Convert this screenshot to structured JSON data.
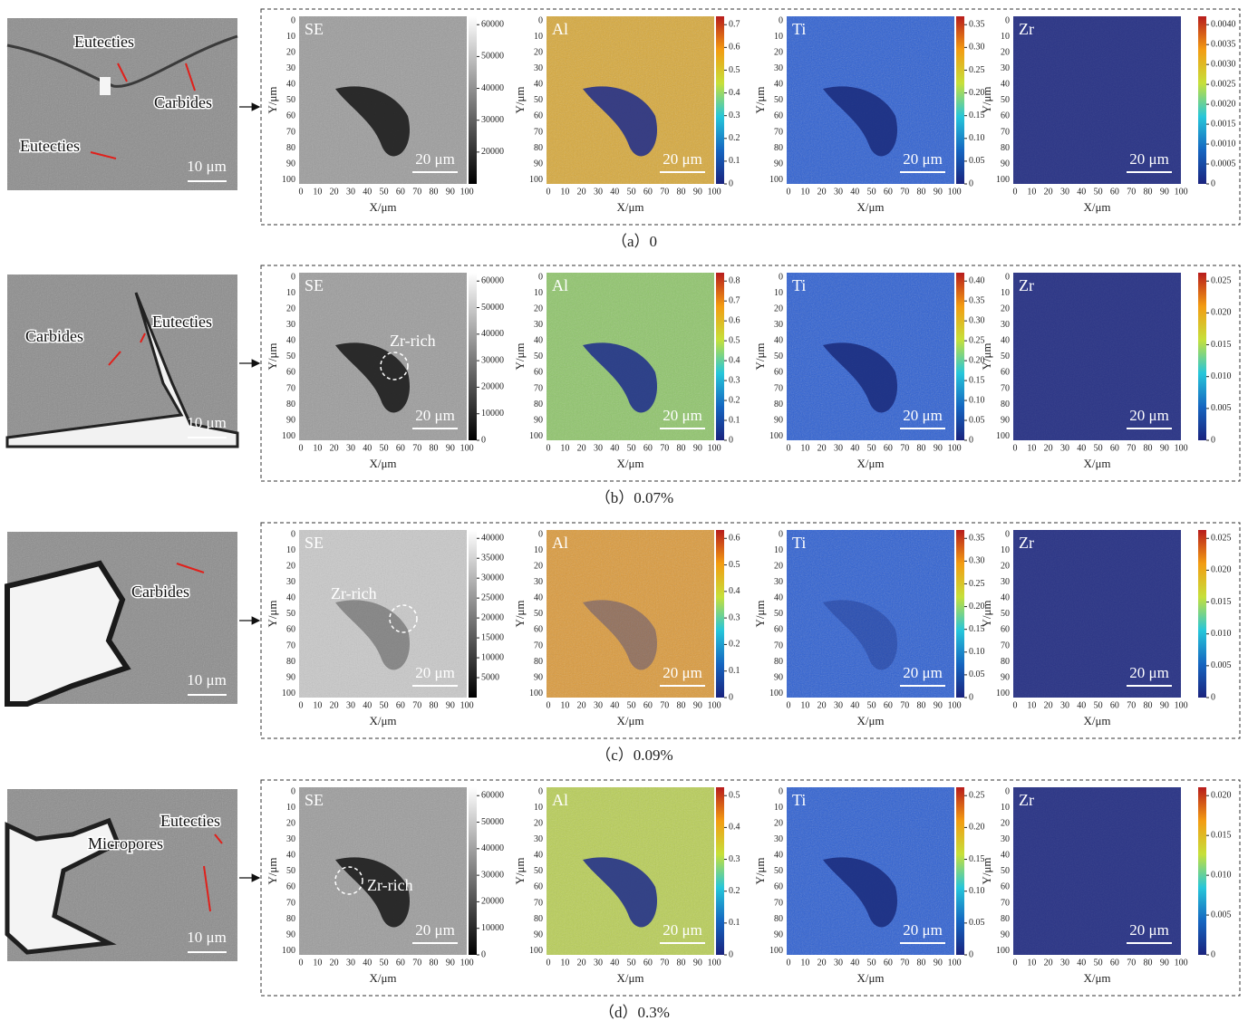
{
  "axis": {
    "ticks": [
      0,
      10,
      20,
      30,
      40,
      50,
      60,
      70,
      80,
      90,
      100
    ],
    "x_label": "X/μm",
    "y_label": "Y/μm",
    "scale_bar": "20 μm"
  },
  "rows": [
    {
      "caption": "（a）0",
      "overview": {
        "labels": [
          "Eutecties",
          "Carbides",
          "Eutecties"
        ],
        "scale_bar": "10 μm"
      },
      "maps": [
        {
          "label": "SE",
          "colorbar": [
            "20000",
            "30000",
            "40000",
            "50000",
            "60000"
          ]
        },
        {
          "label": "Al",
          "colorbar": [
            "0",
            "0.1",
            "0.2",
            "0.3",
            "0.4",
            "0.5",
            "0.6",
            "0.7"
          ]
        },
        {
          "label": "Ti",
          "colorbar": [
            "0",
            "0.05",
            "0.10",
            "0.15",
            "0.20",
            "0.25",
            "0.30",
            "0.35"
          ]
        },
        {
          "label": "Zr",
          "colorbar": [
            "0",
            "0.0005",
            "0.0010",
            "0.0015",
            "0.0020",
            "0.0025",
            "0.0030",
            "0.0035",
            "0.0040"
          ]
        }
      ]
    },
    {
      "caption": "（b）0.07%",
      "overview": {
        "labels": [
          "Carbides",
          "Eutecties"
        ],
        "scale_bar": "10 μm"
      },
      "maps": [
        {
          "label": "SE",
          "colorbar": [
            "0",
            "10000",
            "20000",
            "30000",
            "40000",
            "50000",
            "60000"
          ],
          "annotation": "Zr-rich"
        },
        {
          "label": "Al",
          "colorbar": [
            "0",
            "0.1",
            "0.2",
            "0.3",
            "0.4",
            "0.5",
            "0.6",
            "0.7",
            "0.8"
          ]
        },
        {
          "label": "Ti",
          "colorbar": [
            "0",
            "0.05",
            "0.10",
            "0.15",
            "0.20",
            "0.25",
            "0.30",
            "0.35",
            "0.40"
          ]
        },
        {
          "label": "Zr",
          "colorbar": [
            "0",
            "0.005",
            "0.010",
            "0.015",
            "0.020",
            "0.025"
          ]
        }
      ]
    },
    {
      "caption": "（c）0.09%",
      "overview": {
        "labels": [
          "Carbides"
        ],
        "scale_bar": "10 μm"
      },
      "maps": [
        {
          "label": "SE",
          "colorbar": [
            "5000",
            "10000",
            "15000",
            "20000",
            "25000",
            "30000",
            "35000",
            "40000"
          ],
          "annotation": "Zr-rich"
        },
        {
          "label": "Al",
          "colorbar": [
            "0",
            "0.1",
            "0.2",
            "0.3",
            "0.4",
            "0.5",
            "0.6"
          ]
        },
        {
          "label": "Ti",
          "colorbar": [
            "0",
            "0.05",
            "0.10",
            "0.15",
            "0.20",
            "0.25",
            "0.30",
            "0.35"
          ]
        },
        {
          "label": "Zr",
          "colorbar": [
            "0",
            "0.005",
            "0.010",
            "0.015",
            "0.020",
            "0.025"
          ]
        }
      ]
    },
    {
      "caption": "（d）0.3%",
      "overview": {
        "labels": [
          "Eutecties",
          "Micropores"
        ],
        "scale_bar": "10 μm"
      },
      "maps": [
        {
          "label": "SE",
          "colorbar": [
            "0",
            "10000",
            "20000",
            "30000",
            "40000",
            "50000",
            "60000"
          ],
          "annotation": "Zr-rich"
        },
        {
          "label": "Al",
          "colorbar": [
            "0",
            "0.1",
            "0.2",
            "0.3",
            "0.4",
            "0.5"
          ]
        },
        {
          "label": "Ti",
          "colorbar": [
            "0",
            "0.05",
            "0.10",
            "0.15",
            "0.20",
            "0.25"
          ]
        },
        {
          "label": "Zr",
          "colorbar": [
            "0",
            "0.005",
            "0.010",
            "0.015",
            "0.020"
          ]
        }
      ]
    }
  ]
}
